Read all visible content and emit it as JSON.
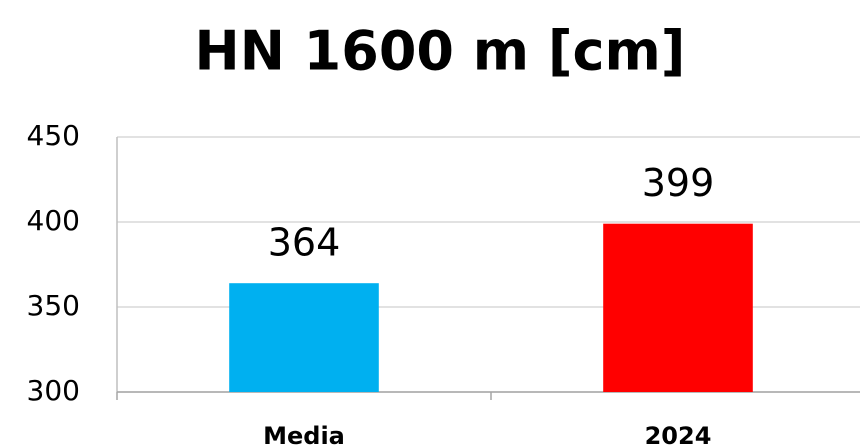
{
  "chart_data": {
    "type": "bar",
    "title": "HN 1600 m [cm]",
    "categories": [
      "Media",
      "2024"
    ],
    "values": [
      364,
      399
    ],
    "colors": [
      "#00b0f0",
      "#ff0000"
    ],
    "ylim": [
      300,
      450
    ],
    "yticks": [
      300,
      350,
      400,
      450
    ],
    "grid": true
  }
}
